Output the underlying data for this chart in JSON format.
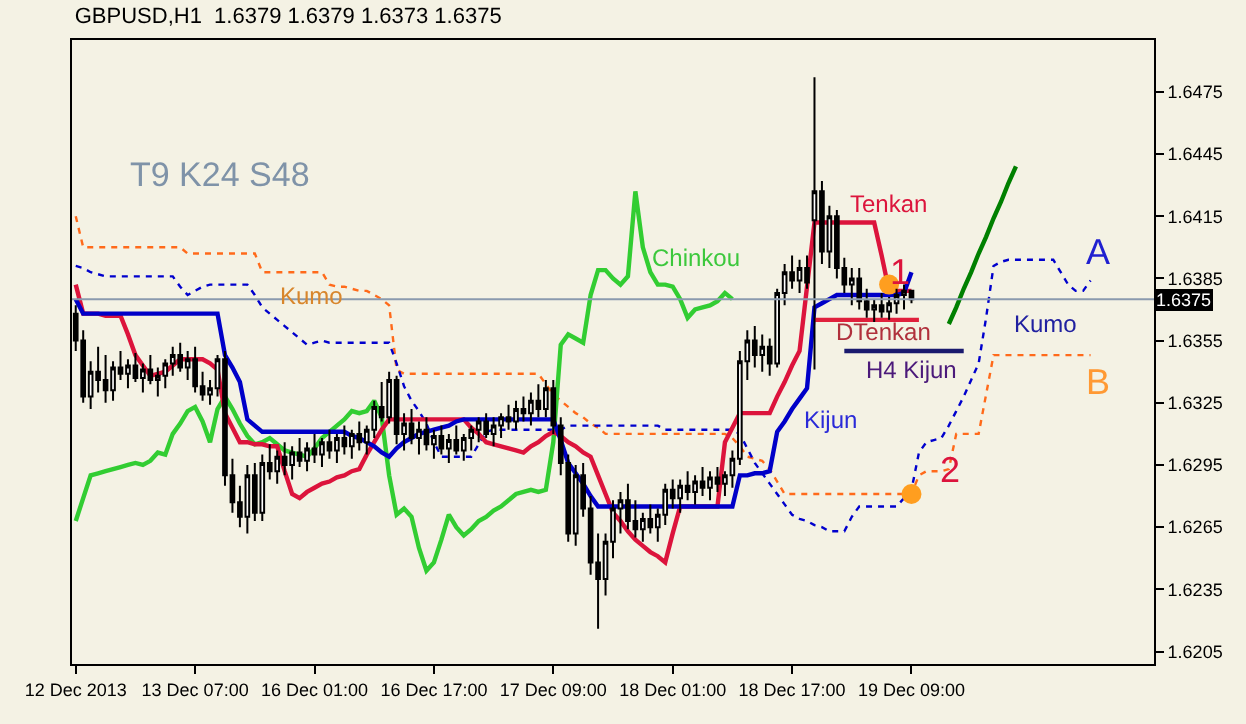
{
  "chart_data": {
    "type": "candlestick",
    "title": "GBPUSD,H1  1.6379 1.6379 1.6373 1.6375",
    "categories": [
      "12 Dec 2013",
      null,
      null,
      null,
      null,
      null,
      null,
      null,
      null,
      null,
      null,
      null,
      null,
      null,
      null,
      null,
      "13 Dec 07:00",
      null,
      null,
      null,
      null,
      null,
      null,
      null,
      null,
      null,
      null,
      null,
      null,
      null,
      null,
      null,
      "16 Dec 01:00",
      null,
      null,
      null,
      null,
      null,
      null,
      null,
      null,
      null,
      null,
      null,
      null,
      null,
      null,
      null,
      "16 Dec 17:00",
      null,
      null,
      null,
      null,
      null,
      null,
      null,
      null,
      null,
      null,
      null,
      null,
      null,
      null,
      null,
      "17 Dec 09:00",
      null,
      null,
      null,
      null,
      null,
      null,
      null,
      null,
      null,
      null,
      null,
      null,
      null,
      null,
      null,
      "18 Dec 01:00",
      null,
      null,
      null,
      null,
      null,
      null,
      null,
      null,
      null,
      null,
      null,
      null,
      null,
      null,
      null,
      "18 Dec 17:00",
      null,
      null,
      null,
      null,
      null,
      null,
      null,
      null,
      null,
      null,
      null,
      null,
      null,
      null,
      null,
      "19 Dec 09:00",
      null,
      null,
      null,
      null,
      null,
      null,
      null,
      null,
      null,
      null,
      null,
      null,
      null,
      null,
      null,
      null,
      null,
      null,
      null,
      null,
      null,
      null,
      null,
      null,
      null,
      null,
      null,
      null,
      null,
      null,
      null,
      null
    ],
    "ohlc": [
      [
        1.6368,
        1.6372,
        1.635,
        1.6355
      ],
      [
        1.6355,
        1.636,
        1.6325,
        1.6328
      ],
      [
        1.6328,
        1.6345,
        1.6322,
        1.634
      ],
      [
        1.634,
        1.6352,
        1.633,
        1.6336
      ],
      [
        1.6336,
        1.6348,
        1.6325,
        1.6331
      ],
      [
        1.6331,
        1.6345,
        1.6326,
        1.6342
      ],
      [
        1.6342,
        1.635,
        1.6336,
        1.6339
      ],
      [
        1.6339,
        1.6346,
        1.6332,
        1.6343
      ],
      [
        1.6343,
        1.6349,
        1.6335,
        1.6337
      ],
      [
        1.6337,
        1.6344,
        1.633,
        1.6341
      ],
      [
        1.6341,
        1.6348,
        1.6334,
        1.6336
      ],
      [
        1.6336,
        1.6342,
        1.6328,
        1.6338
      ],
      [
        1.6338,
        1.6346,
        1.6332,
        1.6344
      ],
      [
        1.6344,
        1.6352,
        1.6338,
        1.6348
      ],
      [
        1.6348,
        1.6354,
        1.634,
        1.6342
      ],
      [
        1.6342,
        1.635,
        1.6336,
        1.6346
      ],
      [
        1.6346,
        1.6352,
        1.633,
        1.6333
      ],
      [
        1.6333,
        1.634,
        1.6326,
        1.6329
      ],
      [
        1.6329,
        1.6336,
        1.6324,
        1.6332
      ],
      [
        1.6332,
        1.6348,
        1.6328,
        1.6346
      ],
      [
        1.6346,
        1.635,
        1.6285,
        1.629
      ],
      [
        1.629,
        1.6298,
        1.6272,
        1.6277
      ],
      [
        1.6277,
        1.6285,
        1.6265,
        1.627
      ],
      [
        1.627,
        1.6295,
        1.6262,
        1.629
      ],
      [
        1.629,
        1.6296,
        1.6268,
        1.6272
      ],
      [
        1.6272,
        1.63,
        1.6268,
        1.6296
      ],
      [
        1.6296,
        1.6305,
        1.6288,
        1.6292
      ],
      [
        1.6292,
        1.6302,
        1.6286,
        1.6299
      ],
      [
        1.6299,
        1.6306,
        1.629,
        1.6295
      ],
      [
        1.6295,
        1.6304,
        1.6288,
        1.6301
      ],
      [
        1.6301,
        1.6308,
        1.6294,
        1.6297
      ],
      [
        1.6297,
        1.6306,
        1.6292,
        1.6303
      ],
      [
        1.6303,
        1.631,
        1.6296,
        1.63
      ],
      [
        1.63,
        1.6308,
        1.6294,
        1.6306
      ],
      [
        1.6306,
        1.6312,
        1.6298,
        1.6302
      ],
      [
        1.6302,
        1.631,
        1.6296,
        1.6308
      ],
      [
        1.6308,
        1.6314,
        1.63,
        1.6304
      ],
      [
        1.6304,
        1.6312,
        1.6298,
        1.631
      ],
      [
        1.631,
        1.6316,
        1.6302,
        1.6306
      ],
      [
        1.6306,
        1.6314,
        1.63,
        1.6312
      ],
      [
        1.6312,
        1.6326,
        1.6308,
        1.6323
      ],
      [
        1.6323,
        1.6335,
        1.6316,
        1.6318
      ],
      [
        1.6318,
        1.634,
        1.6315,
        1.6336
      ],
      [
        1.6336,
        1.6338,
        1.6305,
        1.631
      ],
      [
        1.631,
        1.632,
        1.6302,
        1.6315
      ],
      [
        1.6315,
        1.6322,
        1.6305,
        1.6308
      ],
      [
        1.6308,
        1.6316,
        1.63,
        1.6312
      ],
      [
        1.6312,
        1.6318,
        1.6302,
        1.6305
      ],
      [
        1.6305,
        1.6312,
        1.6298,
        1.6309
      ],
      [
        1.6309,
        1.6314,
        1.63,
        1.6303
      ],
      [
        1.6303,
        1.631,
        1.6296,
        1.6307
      ],
      [
        1.6307,
        1.6314,
        1.63,
        1.6302
      ],
      [
        1.6302,
        1.631,
        1.6297,
        1.6308
      ],
      [
        1.6308,
        1.6314,
        1.6302,
        1.6312
      ],
      [
        1.6312,
        1.6318,
        1.6306,
        1.6316
      ],
      [
        1.6316,
        1.632,
        1.6308,
        1.631
      ],
      [
        1.631,
        1.6318,
        1.6304,
        1.6314
      ],
      [
        1.6314,
        1.632,
        1.6308,
        1.6318
      ],
      [
        1.6318,
        1.6324,
        1.6312,
        1.6316
      ],
      [
        1.6316,
        1.6326,
        1.6312,
        1.6322
      ],
      [
        1.6322,
        1.6328,
        1.6316,
        1.632
      ],
      [
        1.632,
        1.633,
        1.6314,
        1.6326
      ],
      [
        1.6326,
        1.6334,
        1.6318,
        1.6322
      ],
      [
        1.6322,
        1.6336,
        1.6318,
        1.6332
      ],
      [
        1.6332,
        1.6336,
        1.631,
        1.6314
      ],
      [
        1.6314,
        1.6318,
        1.629,
        1.6296
      ],
      [
        1.6296,
        1.63,
        1.6258,
        1.6262
      ],
      [
        1.6262,
        1.6295,
        1.6256,
        1.629
      ],
      [
        1.629,
        1.6296,
        1.627,
        1.6274
      ],
      [
        1.6274,
        1.628,
        1.6242,
        1.6248
      ],
      [
        1.6248,
        1.6262,
        1.6216,
        1.624
      ],
      [
        1.624,
        1.6262,
        1.6232,
        1.6258
      ],
      [
        1.6258,
        1.6278,
        1.625,
        1.6274
      ],
      [
        1.6274,
        1.6282,
        1.6262,
        1.6278
      ],
      [
        1.6278,
        1.6286,
        1.6264,
        1.6268
      ],
      [
        1.6268,
        1.6278,
        1.626,
        1.6264
      ],
      [
        1.6264,
        1.6272,
        1.6258,
        1.6269
      ],
      [
        1.6269,
        1.6276,
        1.6262,
        1.6265
      ],
      [
        1.6265,
        1.6274,
        1.6258,
        1.6271
      ],
      [
        1.6271,
        1.6286,
        1.6266,
        1.6283
      ],
      [
        1.6283,
        1.6288,
        1.6274,
        1.6279
      ],
      [
        1.6279,
        1.6288,
        1.6272,
        1.6285
      ],
      [
        1.6285,
        1.6292,
        1.6278,
        1.6282
      ],
      [
        1.6282,
        1.629,
        1.6276,
        1.6287
      ],
      [
        1.6287,
        1.6294,
        1.628,
        1.6284
      ],
      [
        1.6284,
        1.6292,
        1.6278,
        1.6289
      ],
      [
        1.6289,
        1.6294,
        1.6282,
        1.6286
      ],
      [
        1.6286,
        1.6292,
        1.628,
        1.629
      ],
      [
        1.629,
        1.6302,
        1.6284,
        1.6298
      ],
      [
        1.6298,
        1.635,
        1.6295,
        1.6345
      ],
      [
        1.6345,
        1.636,
        1.6336,
        1.6355
      ],
      [
        1.6355,
        1.6362,
        1.6342,
        1.6348
      ],
      [
        1.6348,
        1.6358,
        1.634,
        1.6352
      ],
      [
        1.6352,
        1.6356,
        1.6338,
        1.6344
      ],
      [
        1.6344,
        1.638,
        1.6342,
        1.6378
      ],
      [
        1.6378,
        1.6392,
        1.6372,
        1.6388
      ],
      [
        1.6388,
        1.6396,
        1.638,
        1.6384
      ],
      [
        1.6384,
        1.6394,
        1.6378,
        1.639
      ],
      [
        1.639,
        1.6396,
        1.638,
        1.6383
      ],
      [
        1.6413,
        1.6482,
        1.6341,
        1.6427
      ],
      [
        1.6427,
        1.6432,
        1.6392,
        1.6398
      ],
      [
        1.6398,
        1.642,
        1.639,
        1.6415
      ],
      [
        1.6415,
        1.6418,
        1.6385,
        1.639
      ],
      [
        1.639,
        1.6395,
        1.6378,
        1.6382
      ],
      [
        1.6382,
        1.639,
        1.6372,
        1.6385
      ],
      [
        1.6385,
        1.639,
        1.637,
        1.6374
      ],
      [
        1.6374,
        1.638,
        1.6366,
        1.637
      ],
      [
        1.637,
        1.6375,
        1.6364,
        1.6372
      ],
      [
        1.6372,
        1.6378,
        1.6366,
        1.6369
      ],
      [
        1.6369,
        1.6376,
        1.6365,
        1.6373
      ],
      [
        1.6373,
        1.638,
        1.6368,
        1.6377
      ],
      [
        1.6377,
        1.6382,
        1.637,
        1.6379
      ],
      [
        1.6379,
        1.6379,
        1.6373,
        1.6375
      ],
      null,
      null,
      null,
      null,
      null,
      null,
      null,
      null,
      null,
      null,
      null,
      null,
      null,
      null,
      null,
      null,
      null,
      null,
      null,
      null,
      null,
      null,
      null,
      null,
      null,
      null,
      null,
      null,
      null,
      null,
      null,
      null
    ],
    "series": [
      {
        "type": "line",
        "line_style": "dashed",
        "color": "#ff6a1a",
        "values": [
          1.6415,
          1.64,
          1.64,
          1.64,
          1.64,
          1.64,
          1.64,
          1.64,
          1.64,
          1.64,
          1.64,
          1.64,
          1.64,
          1.64,
          1.64,
          1.6397,
          1.6397,
          1.6397,
          1.6397,
          1.6397,
          1.6397,
          1.6397,
          1.6397,
          1.6397,
          1.6397,
          1.6388,
          1.6388,
          1.6388,
          1.6388,
          1.6388,
          1.6388,
          1.6388,
          1.6388,
          1.6388,
          1.6382,
          1.6381,
          1.6381,
          1.638,
          1.6379,
          1.6379,
          1.6377,
          1.6375,
          1.6372,
          1.6341,
          1.6339,
          1.6339,
          1.6339,
          1.6339,
          1.6339,
          1.6339,
          1.6339,
          1.6339,
          1.6339,
          1.6339,
          1.6339,
          1.6339,
          1.6339,
          1.6339,
          1.6339,
          1.6339,
          1.6339,
          1.6339,
          1.6339,
          1.6334,
          1.6329,
          1.6326,
          1.6323,
          1.632,
          1.6318,
          1.6315,
          1.6313,
          1.631,
          1.631,
          1.631,
          1.631,
          1.631,
          1.631,
          1.631,
          1.631,
          1.631,
          1.631,
          1.631,
          1.631,
          1.631,
          1.631,
          1.631,
          1.631,
          1.631,
          1.6308,
          1.6304,
          1.6299,
          1.6298,
          1.6297,
          1.6293,
          1.6287,
          1.6281,
          1.6281,
          1.6281,
          1.6281,
          1.6281,
          1.6281,
          1.6281,
          1.6281,
          1.6281,
          1.6281,
          1.6281,
          1.6281,
          1.6281,
          1.6281,
          1.6281,
          1.6281,
          1.6281,
          1.6281,
          1.629,
          1.6292,
          1.6292,
          1.6292,
          1.6293,
          1.631,
          1.631,
          1.631,
          1.631,
          1.6329,
          1.6348,
          1.6348,
          1.6348,
          1.6348,
          1.6348,
          1.6348,
          1.6348,
          1.6348,
          1.6348,
          1.6348,
          1.6348,
          1.6348,
          1.6348,
          1.6348,
          null,
          null,
          null,
          null,
          null,
          null,
          null,
          null
        ]
      },
      {
        "type": "line",
        "line_style": "dashed",
        "color": "#0000cd",
        "values": [
          1.6391,
          1.639,
          1.6388,
          1.6387,
          1.6386,
          1.6386,
          1.6386,
          1.6386,
          1.6386,
          1.6386,
          1.6386,
          1.6386,
          1.6386,
          1.6386,
          1.6381,
          1.6377,
          1.6379,
          1.6381,
          1.6382,
          1.6382,
          1.6382,
          1.6382,
          1.6382,
          1.6382,
          1.6377,
          1.6371,
          1.6368,
          1.6365,
          1.6362,
          1.6359,
          1.6356,
          1.6353,
          1.6354,
          1.6355,
          1.6354,
          1.6354,
          1.6354,
          1.6354,
          1.6354,
          1.6354,
          1.6354,
          1.6354,
          1.6354,
          1.6344,
          1.6333,
          1.6326,
          1.6321,
          1.6315,
          1.6306,
          1.6299,
          1.6299,
          1.6299,
          1.6299,
          1.6299,
          1.6305,
          1.6311,
          1.6312,
          1.6312,
          1.6312,
          1.6312,
          1.6312,
          1.6312,
          1.6312,
          1.6312,
          1.6312,
          1.6312,
          1.6314,
          1.6314,
          1.6314,
          1.6314,
          1.6314,
          1.6314,
          1.6314,
          1.6314,
          1.6314,
          1.6314,
          1.6314,
          1.6314,
          1.6314,
          1.6312,
          1.6312,
          1.6312,
          1.6312,
          1.6312,
          1.6312,
          1.6312,
          1.6312,
          1.6312,
          1.6312,
          1.631,
          1.6303,
          1.6296,
          1.6291,
          1.6286,
          1.6281,
          1.6276,
          1.6271,
          1.6269,
          1.6268,
          1.6266,
          1.6265,
          1.6263,
          1.6263,
          1.6263,
          1.627,
          1.6275,
          1.6275,
          1.6275,
          1.6275,
          1.6275,
          1.6275,
          1.6279,
          1.6283,
          1.6301,
          1.6306,
          1.6307,
          1.6308,
          1.6314,
          1.6321,
          1.6328,
          1.6336,
          1.6344,
          1.6366,
          1.6391,
          1.6393,
          1.6394,
          1.6394,
          1.6394,
          1.6394,
          1.6394,
          1.6394,
          1.6394,
          1.6388,
          1.6382,
          1.6379,
          1.6379,
          1.6384,
          null,
          null,
          null,
          null,
          null,
          null,
          null,
          null
        ]
      },
      {
        "type": "line",
        "color": "#32cd32",
        "values": [
          1.6268,
          1.6279,
          1.629,
          1.6291,
          1.6292,
          1.6293,
          1.6294,
          1.6295,
          1.6296,
          1.6295,
          1.6297,
          1.6301,
          1.63,
          1.631,
          1.6315,
          1.6321,
          1.6323,
          1.6316,
          1.6306,
          1.6322,
          1.6328,
          1.6322,
          1.6315,
          1.6309,
          1.6305,
          1.6306,
          1.6308,
          1.6305,
          1.6302,
          1.6301,
          1.63,
          1.6299,
          1.6303,
          1.6308,
          1.6311,
          1.6314,
          1.6317,
          1.6321,
          1.632,
          1.6321,
          1.6326,
          1.6318,
          1.629,
          1.6271,
          1.6274,
          1.627,
          1.6255,
          1.6244,
          1.6248,
          1.6259,
          1.6271,
          1.6265,
          1.6261,
          1.6264,
          1.6268,
          1.627,
          1.6273,
          1.6275,
          1.6278,
          1.6281,
          1.6282,
          1.6283,
          1.6282,
          1.6283,
          1.6306,
          1.6353,
          1.6358,
          1.6356,
          1.6354,
          1.6377,
          1.6389,
          1.6389,
          1.6385,
          1.6382,
          1.6386,
          1.6427,
          1.64,
          1.6388,
          1.6382,
          1.6382,
          1.6381,
          1.6375,
          1.6366,
          1.637,
          1.6371,
          1.6372,
          1.6374,
          1.6378,
          1.6375,
          null,
          null,
          null,
          null,
          null,
          null,
          null,
          null,
          null,
          null,
          null,
          null,
          null,
          null,
          null,
          null,
          null,
          null,
          null,
          null,
          null,
          null,
          null,
          null,
          null,
          null,
          null,
          null,
          null,
          null,
          null,
          null,
          null,
          null,
          null,
          null,
          null,
          null,
          null,
          null,
          null,
          null,
          null,
          null,
          null,
          null,
          null,
          null,
          null,
          null,
          null,
          null,
          null,
          null,
          null,
          null
        ]
      },
      {
        "type": "line",
        "color": "#dc143c",
        "values": [
          1.6382,
          1.6368,
          1.6368,
          1.6368,
          1.6367,
          1.6367,
          1.6367,
          1.6358,
          1.6348,
          1.6343,
          1.6338,
          1.6339,
          1.634,
          1.6343,
          1.6346,
          1.6346,
          1.6346,
          1.6346,
          1.6344,
          1.6341,
          1.632,
          1.6313,
          1.6306,
          1.6306,
          1.6305,
          1.6305,
          1.6304,
          1.6304,
          1.6292,
          1.6281,
          1.6279,
          1.6282,
          1.6284,
          1.6286,
          1.6287,
          1.6289,
          1.629,
          1.6292,
          1.6293,
          1.63,
          1.6306,
          1.6312,
          1.6317,
          1.6317,
          1.6317,
          1.6317,
          1.6317,
          1.6317,
          1.6317,
          1.6317,
          1.6317,
          1.6317,
          1.6317,
          1.6313,
          1.631,
          1.6306,
          1.6305,
          1.6304,
          1.6303,
          1.6302,
          1.6301,
          1.6304,
          1.6306,
          1.6309,
          1.6311,
          1.6309,
          1.6306,
          1.6304,
          1.6301,
          1.6299,
          1.629,
          1.6281,
          1.6272,
          1.6268,
          1.6263,
          1.6259,
          1.6256,
          1.6253,
          1.6251,
          1.6248,
          1.6262,
          1.6275,
          1.6275,
          1.6275,
          1.6275,
          1.6275,
          1.6275,
          1.6306,
          1.6313,
          1.632,
          1.632,
          1.632,
          1.632,
          1.632,
          1.6328,
          1.6335,
          1.6343,
          1.635,
          1.6381,
          1.6412,
          1.6412,
          1.6412,
          1.6412,
          1.6412,
          1.6412,
          1.6412,
          1.6412,
          1.6412,
          1.6396,
          1.6379,
          1.6379,
          1.6379,
          1.6379,
          null,
          null,
          null,
          null,
          null,
          null,
          null,
          null,
          null,
          null,
          null,
          null,
          null,
          null,
          null,
          null,
          null,
          null,
          null,
          null,
          null,
          null,
          null,
          null,
          null,
          null,
          null,
          null,
          null,
          null,
          null,
          null
        ]
      },
      {
        "type": "line",
        "color": "#0000c8",
        "values": [
          1.6375,
          1.6368,
          1.6368,
          1.6368,
          1.6368,
          1.6368,
          1.6368,
          1.6368,
          1.6368,
          1.6368,
          1.6368,
          1.6368,
          1.6368,
          1.6368,
          1.6368,
          1.6368,
          1.6368,
          1.6368,
          1.6368,
          1.6368,
          1.6348,
          1.6342,
          1.6335,
          1.6317,
          1.6314,
          1.6311,
          1.6311,
          1.6311,
          1.6311,
          1.6311,
          1.6311,
          1.6311,
          1.6311,
          1.6311,
          1.6311,
          1.6311,
          1.6311,
          1.6309,
          1.6308,
          1.6306,
          1.6304,
          1.6301,
          1.6299,
          1.6303,
          1.6306,
          1.6308,
          1.631,
          1.6311,
          1.6312,
          1.6313,
          1.6314,
          1.6316,
          1.6317,
          1.6317,
          1.6317,
          1.6317,
          1.6317,
          1.6317,
          1.6317,
          1.6317,
          1.6317,
          1.6317,
          1.6317,
          1.6317,
          1.6317,
          1.6307,
          1.6296,
          1.6291,
          1.6286,
          1.628,
          1.6275,
          1.6275,
          1.6275,
          1.6275,
          1.6275,
          1.6275,
          1.6275,
          1.6275,
          1.6275,
          1.6275,
          1.6275,
          1.6275,
          1.6275,
          1.6275,
          1.6275,
          1.6275,
          1.6275,
          1.6275,
          1.6275,
          1.629,
          1.629,
          1.6291,
          1.6291,
          1.6292,
          1.6311,
          1.6316,
          1.6322,
          1.6327,
          1.6332,
          1.6371,
          1.6373,
          1.6375,
          1.6377,
          1.6377,
          1.6377,
          1.6377,
          1.6377,
          1.6377,
          1.6377,
          1.6377,
          1.6377,
          1.6378,
          1.6388,
          null,
          null,
          null,
          null,
          null,
          null,
          null,
          null,
          null,
          null,
          null,
          null,
          null,
          null,
          null,
          null,
          null,
          null,
          null,
          null,
          null,
          null,
          null,
          null,
          null,
          null,
          null,
          null,
          null,
          null,
          null,
          null
        ]
      },
      {
        "type": "line",
        "color": "#e0203c",
        "values": [
          null,
          null,
          null,
          null,
          null,
          null,
          null,
          null,
          null,
          null,
          null,
          null,
          null,
          null,
          null,
          null,
          null,
          null,
          null,
          null,
          null,
          null,
          null,
          null,
          null,
          null,
          null,
          null,
          null,
          null,
          null,
          null,
          null,
          null,
          null,
          null,
          null,
          null,
          null,
          null,
          null,
          null,
          null,
          null,
          null,
          null,
          null,
          null,
          null,
          null,
          null,
          null,
          null,
          null,
          null,
          null,
          null,
          null,
          null,
          null,
          null,
          null,
          null,
          null,
          null,
          null,
          null,
          null,
          null,
          null,
          null,
          null,
          null,
          null,
          null,
          null,
          null,
          null,
          null,
          null,
          null,
          null,
          null,
          null,
          null,
          null,
          null,
          null,
          null,
          null,
          null,
          null,
          null,
          null,
          null,
          null,
          null,
          null,
          null,
          1.6365,
          1.6365,
          1.6365,
          1.6365,
          1.6365,
          1.6365,
          1.6365,
          1.6365,
          1.6365,
          1.6365,
          1.6365,
          1.6365,
          1.6365,
          1.6365,
          1.6365,
          null,
          null,
          null,
          null,
          null,
          null,
          null,
          null,
          null,
          null,
          null,
          null,
          null,
          null,
          null,
          null,
          null,
          null,
          null,
          null,
          null,
          null,
          null,
          null,
          null,
          null,
          null,
          null,
          null,
          null,
          null
        ]
      },
      {
        "type": "line",
        "color": "#1a1a6e",
        "values": [
          null,
          null,
          null,
          null,
          null,
          null,
          null,
          null,
          null,
          null,
          null,
          null,
          null,
          null,
          null,
          null,
          null,
          null,
          null,
          null,
          null,
          null,
          null,
          null,
          null,
          null,
          null,
          null,
          null,
          null,
          null,
          null,
          null,
          null,
          null,
          null,
          null,
          null,
          null,
          null,
          null,
          null,
          null,
          null,
          null,
          null,
          null,
          null,
          null,
          null,
          null,
          null,
          null,
          null,
          null,
          null,
          null,
          null,
          null,
          null,
          null,
          null,
          null,
          null,
          null,
          null,
          null,
          null,
          null,
          null,
          null,
          null,
          null,
          null,
          null,
          null,
          null,
          null,
          null,
          null,
          null,
          null,
          null,
          null,
          null,
          null,
          null,
          null,
          null,
          null,
          null,
          null,
          null,
          null,
          null,
          null,
          null,
          null,
          null,
          null,
          null,
          null,
          null,
          1.635,
          1.635,
          1.635,
          1.635,
          1.635,
          1.635,
          1.635,
          1.635,
          1.635,
          1.635,
          1.635,
          1.635,
          1.635,
          1.635,
          1.635,
          1.635,
          1.635,
          null,
          null,
          null,
          null,
          null,
          null,
          null,
          null,
          null,
          null,
          null,
          null,
          null,
          null,
          null,
          null,
          null,
          null,
          null,
          null,
          null,
          null,
          null,
          null,
          null
        ]
      },
      {
        "type": "line",
        "color": "#008000",
        "values": [
          null,
          null,
          null,
          null,
          null,
          null,
          null,
          null,
          null,
          null,
          null,
          null,
          null,
          null,
          null,
          null,
          null,
          null,
          null,
          null,
          null,
          null,
          null,
          null,
          null,
          null,
          null,
          null,
          null,
          null,
          null,
          null,
          null,
          null,
          null,
          null,
          null,
          null,
          null,
          null,
          null,
          null,
          null,
          null,
          null,
          null,
          null,
          null,
          null,
          null,
          null,
          null,
          null,
          null,
          null,
          null,
          null,
          null,
          null,
          null,
          null,
          null,
          null,
          null,
          null,
          null,
          null,
          null,
          null,
          null,
          null,
          null,
          null,
          null,
          null,
          null,
          null,
          null,
          null,
          null,
          null,
          null,
          null,
          null,
          null,
          null,
          null,
          null,
          null,
          null,
          null,
          null,
          null,
          null,
          null,
          null,
          null,
          null,
          null,
          null,
          null,
          null,
          null,
          null,
          null,
          null,
          null,
          null,
          null,
          null,
          null,
          null,
          null,
          null,
          null,
          null,
          null,
          1.6363,
          1.6371,
          1.638,
          1.6388,
          1.6397,
          1.6405,
          1.6414,
          1.6422,
          1.6431,
          1.6439,
          null,
          null,
          null,
          null,
          null,
          null,
          null,
          null,
          null,
          null,
          null,
          null,
          null,
          null,
          null,
          null,
          null,
          null
        ]
      },
      {
        "type": "scatter",
        "marker": "circle",
        "color": "#ff9e1f",
        "values": [
          null,
          null,
          null,
          null,
          null,
          null,
          null,
          null,
          null,
          null,
          null,
          null,
          null,
          null,
          null,
          null,
          null,
          null,
          null,
          null,
          null,
          null,
          null,
          null,
          null,
          null,
          null,
          null,
          null,
          null,
          null,
          null,
          null,
          null,
          null,
          null,
          null,
          null,
          null,
          null,
          null,
          null,
          null,
          null,
          null,
          null,
          null,
          null,
          null,
          null,
          null,
          null,
          null,
          null,
          null,
          null,
          null,
          null,
          null,
          null,
          null,
          null,
          null,
          null,
          null,
          null,
          null,
          null,
          null,
          null,
          null,
          null,
          null,
          null,
          null,
          null,
          null,
          null,
          null,
          null,
          null,
          null,
          null,
          null,
          null,
          null,
          null,
          null,
          null,
          null,
          null,
          null,
          null,
          null,
          null,
          null,
          null,
          null,
          null,
          null,
          null,
          null,
          null,
          null,
          null,
          null,
          null,
          null,
          null,
          1.6382,
          null,
          null,
          1.6281,
          null,
          null,
          null,
          null,
          null,
          null,
          null,
          null,
          null,
          null,
          null,
          null,
          null,
          null,
          null,
          null,
          null,
          null,
          null,
          null,
          null,
          null,
          null,
          null,
          null,
          null,
          null,
          null,
          null,
          null,
          null,
          null
        ]
      }
    ],
    "annotations": [
      "T9 K24 S48",
      "Chinkou",
      "Tenkan",
      "1",
      "Kumo",
      "Kijun",
      "DTenkan",
      "H4 Kijun",
      "Kumo",
      "A",
      "B",
      "2"
    ],
    "ref_lines": [
      {
        "axis": "y",
        "value": 1.6375,
        "label": "1.6375",
        "color": "#8a9aae"
      }
    ],
    "ylim": [
      1.6199,
      1.65
    ],
    "yticks": [
      1.6205,
      1.6235,
      1.6265,
      1.6295,
      1.6325,
      1.6355,
      1.6385,
      1.6415,
      1.6445,
      1.6475
    ],
    "grid": false
  }
}
